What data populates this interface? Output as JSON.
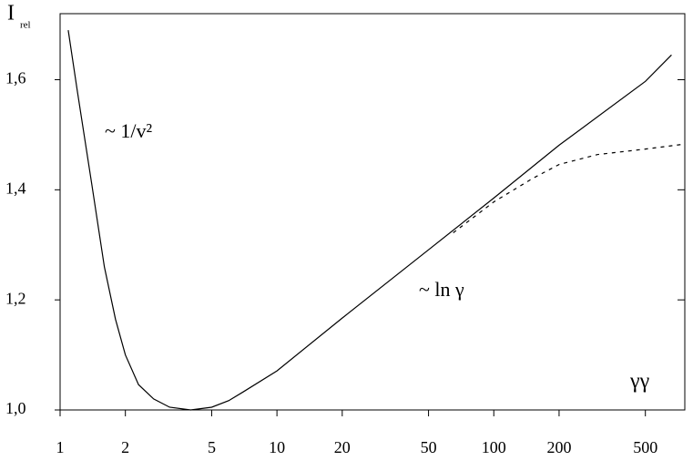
{
  "chart_data": {
    "type": "line",
    "ylabel": "I",
    "ylabel_sub": "rel",
    "xlabel": "γγ",
    "annotations": [
      "~ 1/v²",
      "~ ln γ"
    ],
    "series": [
      {
        "color": "#000000",
        "dash": false,
        "x": [
          1.09,
          1.2,
          1.4,
          1.6,
          1.8,
          2.0,
          2.3,
          2.7,
          3.2,
          4,
          5,
          6,
          7,
          10,
          20,
          50,
          100,
          200,
          500,
          660
        ],
        "values": [
          1.69,
          1.58,
          1.41,
          1.26,
          1.165,
          1.1,
          1.046,
          1.02,
          1.005,
          1.0,
          1.005,
          1.017,
          1.033,
          1.071,
          1.167,
          1.291,
          1.385,
          1.481,
          1.597,
          1.645
        ]
      },
      {
        "color": "#000000",
        "dash": true,
        "x": [
          65,
          100,
          150,
          200,
          300,
          500,
          760
        ],
        "values": [
          1.322,
          1.378,
          1.42,
          1.446,
          1.464,
          1.474,
          1.483
        ]
      }
    ],
    "xscale": "log",
    "xlim": [
      1,
      760
    ],
    "ylim": [
      1.0,
      1.72
    ],
    "xticks": [
      1,
      2,
      5,
      10,
      20,
      50,
      100,
      200,
      500
    ],
    "yticks": [
      {
        "value": 1.0,
        "label": "1,0"
      },
      {
        "value": 1.2,
        "label": "1,2"
      },
      {
        "value": 1.4,
        "label": "1,4"
      },
      {
        "value": 1.6,
        "label": "1,6"
      }
    ]
  }
}
